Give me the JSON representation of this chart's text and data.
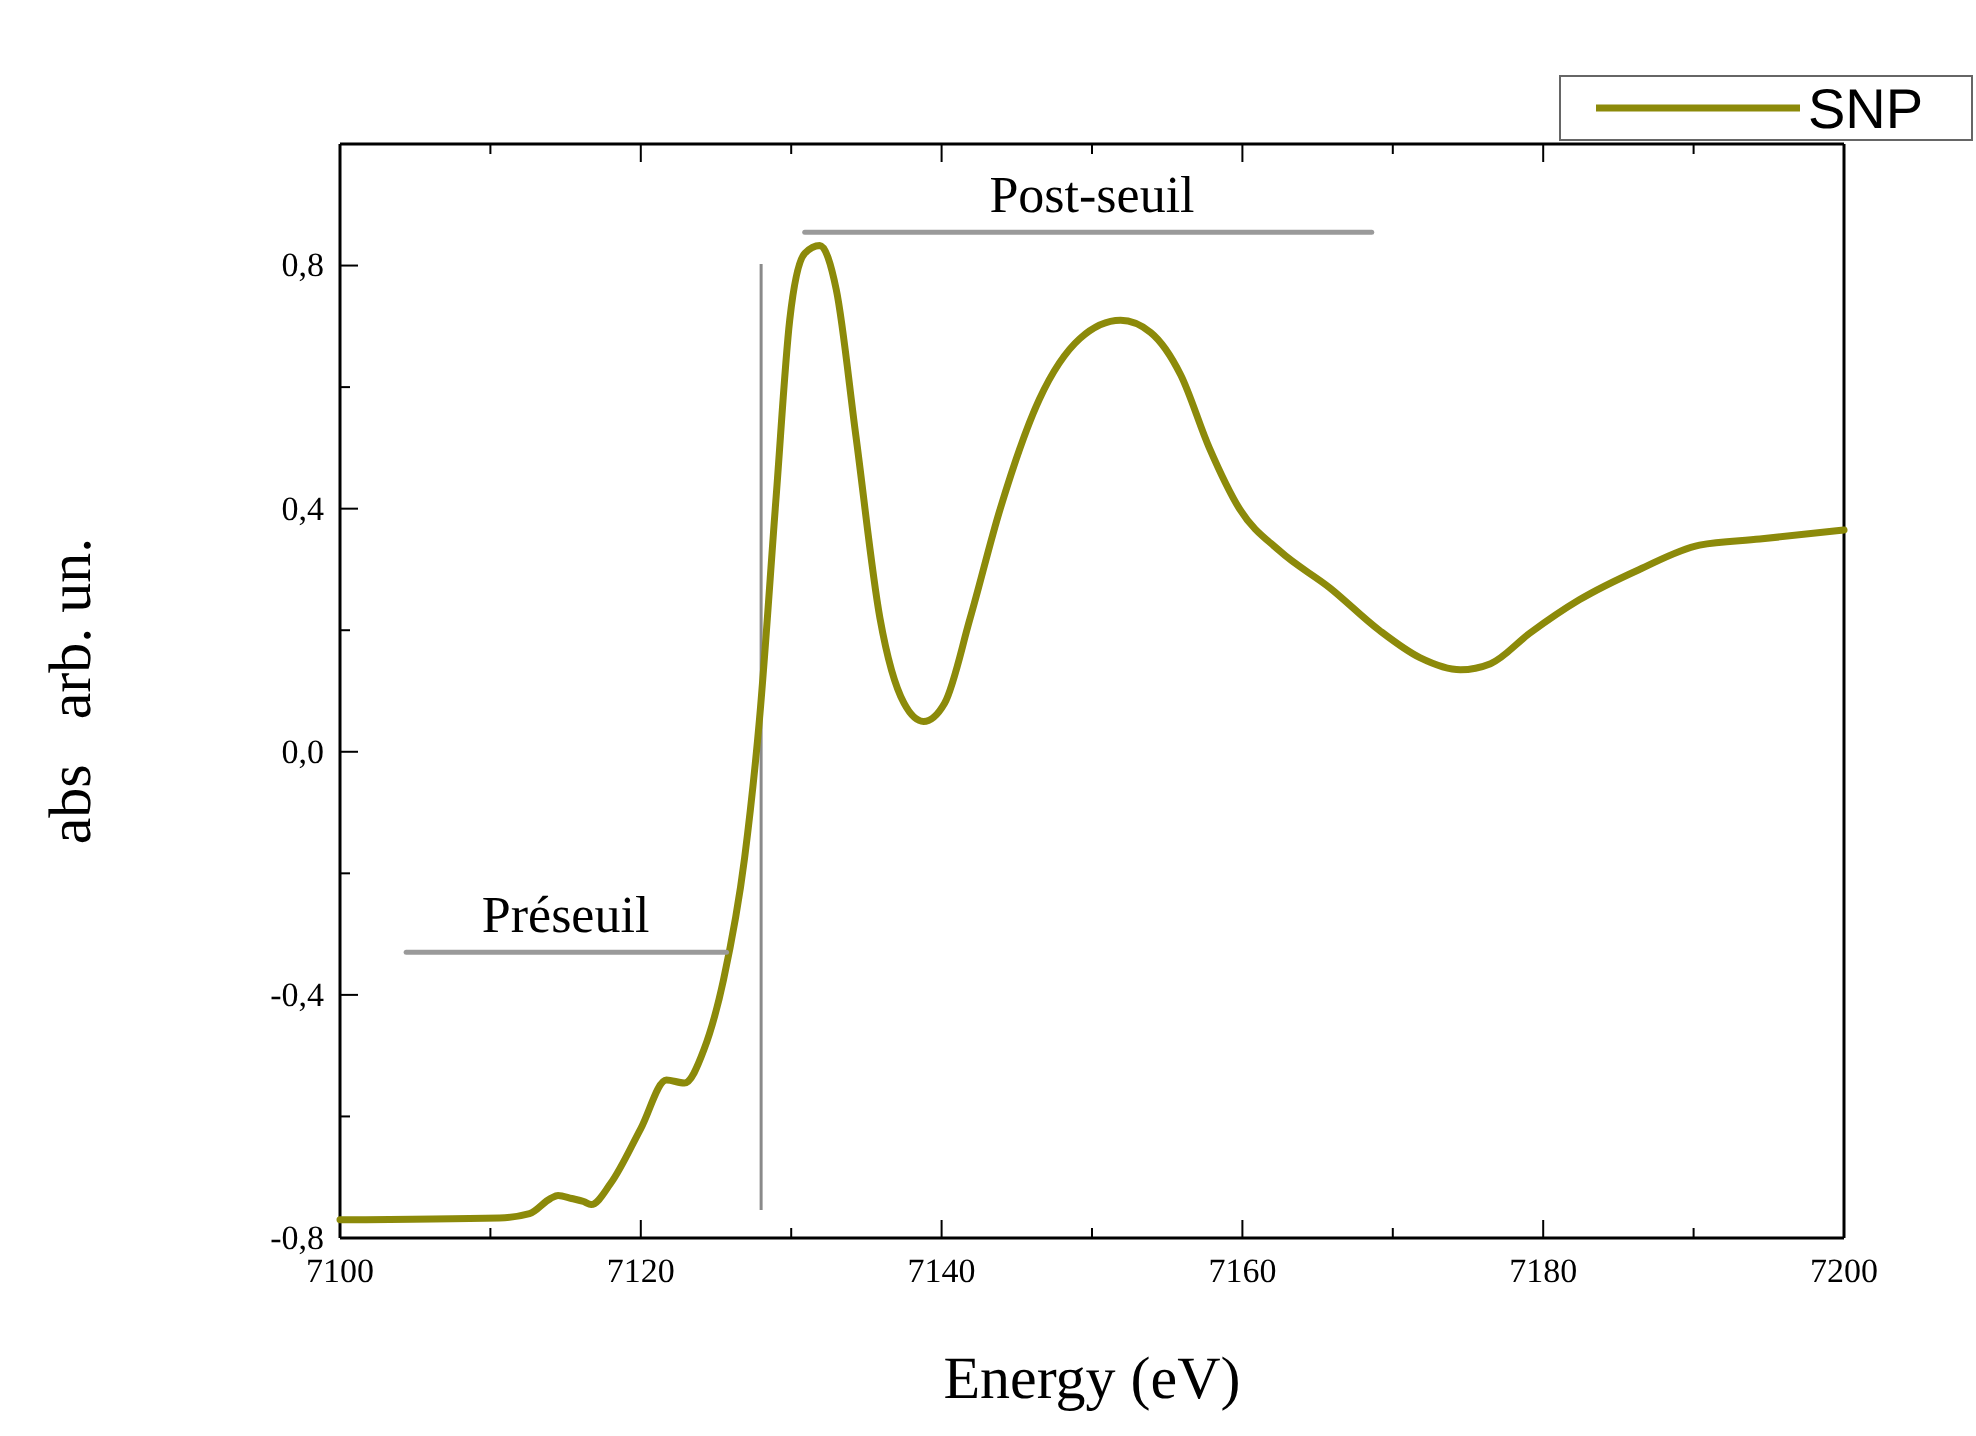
{
  "chart_data": {
    "type": "line",
    "xlabel": "Energy (eV)",
    "ylabel": "abs   arb. un.",
    "xlim": [
      7100,
      7200
    ],
    "xticks": [
      7100,
      {
        "value": 7110,
        "label": null
      },
      7120,
      {
        "value": 7130,
        "label": null
      },
      7140,
      {
        "value": 7150,
        "label": null
      },
      7160,
      {
        "value": 7170,
        "label": null
      },
      7180,
      {
        "value": 7190,
        "label": null
      },
      7200
    ],
    "ylim": [
      -0.8,
      1.0
    ],
    "yticks": [
      {
        "value": -0.8,
        "label": "-0,8"
      },
      {
        "value": -0.6,
        "label": null
      },
      {
        "value": -0.4,
        "label": "-0,4"
      },
      {
        "value": -0.2,
        "label": null
      },
      {
        "value": 0,
        "label": "0,0"
      },
      {
        "value": 0.2,
        "label": null
      },
      {
        "value": 0.4,
        "label": "0,4"
      },
      {
        "value": 0.6,
        "label": null
      },
      {
        "value": 0.8,
        "label": "0,8"
      }
    ],
    "grid": false,
    "legend": "top right",
    "marker": "none",
    "line_style": "solid",
    "series": [
      {
        "name": "SNP",
        "color": "#8c8a0a",
        "x": [
          7100,
          7110.6,
          7112.6,
          7114,
          7114.5,
          7115.4,
          7116.2,
          7116.7,
          7118,
          7120,
          7121.7,
          7122.9,
          7124.2,
          7125.5,
          7126.9,
          7127.9,
          7129,
          7129.9,
          7130.9,
          7131.9,
          7133,
          7134.3,
          7135.9,
          7137.5,
          7138.8,
          7140.2,
          7141.9,
          7143.9,
          7146.5,
          7149.2,
          7151.9,
          7153.9,
          7155.9,
          7157.8,
          7159.8,
          7162.5,
          7165.8,
          7169.1,
          7171.8,
          7174.5,
          7176.5,
          7179.1,
          7182.4,
          7186.4,
          7190.4,
          7194.4,
          7200
        ],
        "values": [
          -0.77,
          -0.767,
          -0.76,
          -0.735,
          -0.73,
          -0.735,
          -0.74,
          -0.745,
          -0.71,
          -0.62,
          -0.54,
          -0.545,
          -0.49,
          -0.375,
          -0.175,
          0.056,
          0.42,
          0.71,
          0.82,
          0.833,
          0.76,
          0.52,
          0.22,
          0.08,
          0.05,
          0.08,
          0.22,
          0.4,
          0.58,
          0.68,
          0.71,
          0.69,
          0.62,
          0.5,
          0.4,
          0.33,
          0.27,
          0.2,
          0.155,
          0.135,
          0.145,
          0.195,
          0.25,
          0.3,
          0.34,
          0.35,
          0.365
        ]
      },
      {
        "color": "#9a9a9a",
        "x": [
          7104.4,
          7125.7
        ],
        "values": [
          -0.33,
          -0.33
        ]
      },
      {
        "color": "#9a9a9a",
        "x": [
          7130.9,
          7168.6
        ],
        "values": [
          0.855,
          0.855
        ]
      }
    ],
    "ref_lines": [
      {
        "axis": "x",
        "value": 7128,
        "color": "#8a8a8a",
        "line_style": "solid"
      }
    ],
    "annotations": [
      {
        "text": "Préseuil",
        "x": 7115,
        "y": -0.33
      },
      {
        "text": "Post-seuil",
        "x": 7150,
        "y": 0.855
      }
    ]
  }
}
